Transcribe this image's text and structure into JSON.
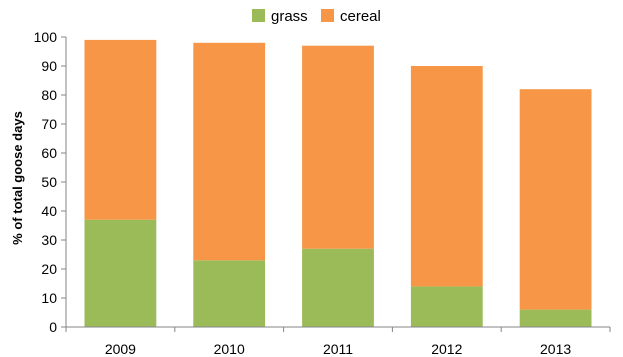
{
  "chart_data": {
    "type": "bar",
    "stacked": true,
    "categories": [
      "2009",
      "2010",
      "2011",
      "2012",
      "2013"
    ],
    "series": [
      {
        "name": "grass",
        "color": "#9BBB59",
        "values": [
          37,
          23,
          27,
          14,
          6
        ]
      },
      {
        "name": "cereal",
        "color": "#F79646",
        "values": [
          62,
          75,
          70,
          76,
          76
        ]
      }
    ],
    "title": "",
    "xlabel": "",
    "ylabel": "% of total goose days",
    "ylim": [
      0,
      100
    ],
    "yticks": [
      0,
      10,
      20,
      30,
      40,
      50,
      60,
      70,
      80,
      90,
      100
    ],
    "grid": false,
    "legend_position": "top"
  }
}
